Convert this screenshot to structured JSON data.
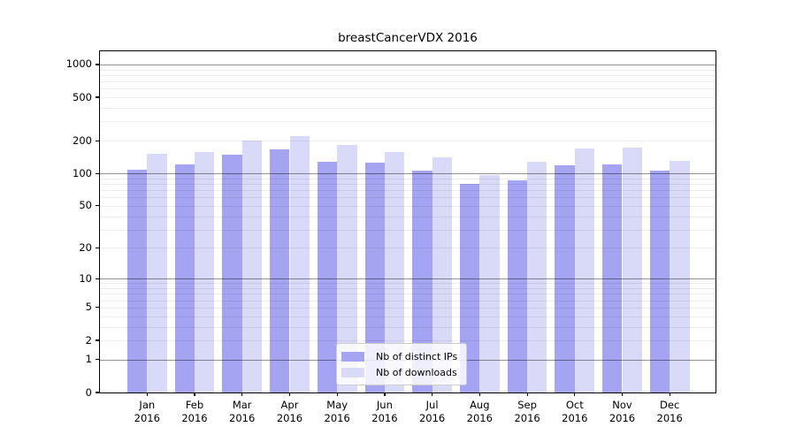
{
  "title": "breastCancerVDX 2016",
  "chart_data": {
    "type": "bar",
    "title": "breastCancerVDX 2016",
    "categories": [
      "Jan 2016",
      "Feb 2016",
      "Mar 2016",
      "Apr 2016",
      "May 2016",
      "Jun 2016",
      "Jul 2016",
      "Aug 2016",
      "Sep 2016",
      "Oct 2016",
      "Nov 2016",
      "Dec 2016"
    ],
    "series": [
      {
        "name": "Nb of distinct IPs",
        "color": "#a4a4f2",
        "values": [
          108,
          120,
          150,
          165,
          127,
          126,
          107,
          80,
          87,
          119,
          121,
          106
        ]
      },
      {
        "name": "Nb of downloads",
        "color": "#d9d9f8",
        "values": [
          152,
          156,
          199,
          220,
          181,
          158,
          141,
          96,
          128,
          170,
          173,
          130
        ]
      }
    ],
    "y_ticks": [
      0,
      1,
      2,
      5,
      10,
      20,
      50,
      100,
      200,
      500,
      1000
    ],
    "y_scale": "log1p",
    "ylim": [
      0,
      1320
    ],
    "xlabel": "",
    "ylabel": "",
    "grid": true,
    "legend_position": "lower center"
  },
  "legend": {
    "items": [
      {
        "label": "Nb of distinct IPs",
        "color": "#a4a4f2"
      },
      {
        "label": "Nb of downloads",
        "color": "#d9d9f8"
      }
    ]
  },
  "colors": {
    "background": "#ffffff",
    "bar_ips": "#a4a4f2",
    "bar_downloads": "#d9d9f8",
    "grid_major": "#949494",
    "grid_minor": "#ededed",
    "axis": "#000000",
    "legend_border": "#cccccc"
  }
}
